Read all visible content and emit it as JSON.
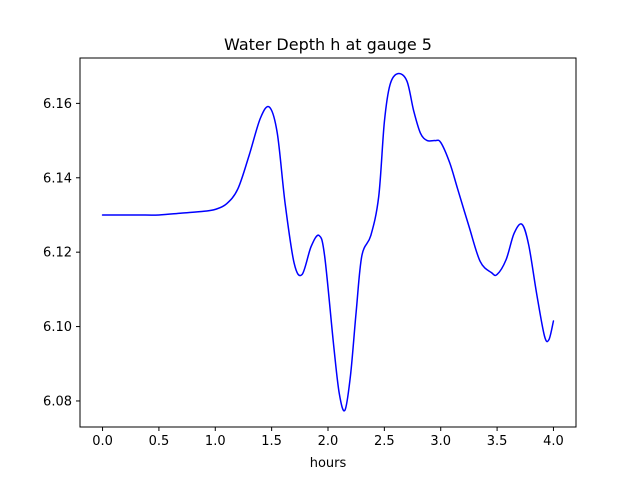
{
  "chart_data": {
    "type": "line",
    "title": "Water Depth h at gauge 5",
    "xlabel": "hours",
    "ylabel": "",
    "xlim": [
      -0.2,
      4.2
    ],
    "ylim": [
      6.073,
      6.1722
    ],
    "xticks": [
      0.0,
      0.5,
      1.0,
      1.5,
      2.0,
      2.5,
      3.0,
      3.5,
      4.0
    ],
    "xtick_labels": [
      "0.0",
      "0.5",
      "1.0",
      "1.5",
      "2.0",
      "2.5",
      "3.0",
      "3.5",
      "4.0"
    ],
    "yticks": [
      6.08,
      6.1,
      6.12,
      6.14,
      6.16
    ],
    "ytick_labels": [
      "6.08",
      "6.10",
      "6.12",
      "6.14",
      "6.16"
    ],
    "grid": false,
    "series": [
      {
        "color": "#0000ff",
        "x": [
          0.0,
          0.3,
          0.5,
          0.7,
          0.9,
          1.0,
          1.1,
          1.2,
          1.3,
          1.4,
          1.48,
          1.55,
          1.62,
          1.7,
          1.77,
          1.85,
          1.92,
          1.97,
          2.05,
          2.1,
          2.15,
          2.2,
          2.25,
          2.3,
          2.38,
          2.45,
          2.5,
          2.55,
          2.62,
          2.7,
          2.76,
          2.82,
          2.88,
          2.95,
          3.0,
          3.08,
          3.15,
          3.25,
          3.35,
          3.45,
          3.5,
          3.58,
          3.65,
          3.72,
          3.78,
          3.85,
          3.92,
          3.96,
          4.0
        ],
        "y": [
          6.13,
          6.13,
          6.13,
          6.1305,
          6.131,
          6.1315,
          6.133,
          6.137,
          6.146,
          6.156,
          6.159,
          6.152,
          6.133,
          6.117,
          6.114,
          6.1215,
          6.1245,
          6.119,
          6.095,
          6.082,
          6.0775,
          6.087,
          6.104,
          6.119,
          6.1245,
          6.135,
          6.155,
          6.165,
          6.168,
          6.166,
          6.158,
          6.152,
          6.15,
          6.15,
          6.1495,
          6.144,
          6.137,
          6.127,
          6.1175,
          6.1145,
          6.114,
          6.118,
          6.125,
          6.1275,
          6.122,
          6.109,
          6.0975,
          6.0965,
          6.1015
        ]
      }
    ]
  }
}
